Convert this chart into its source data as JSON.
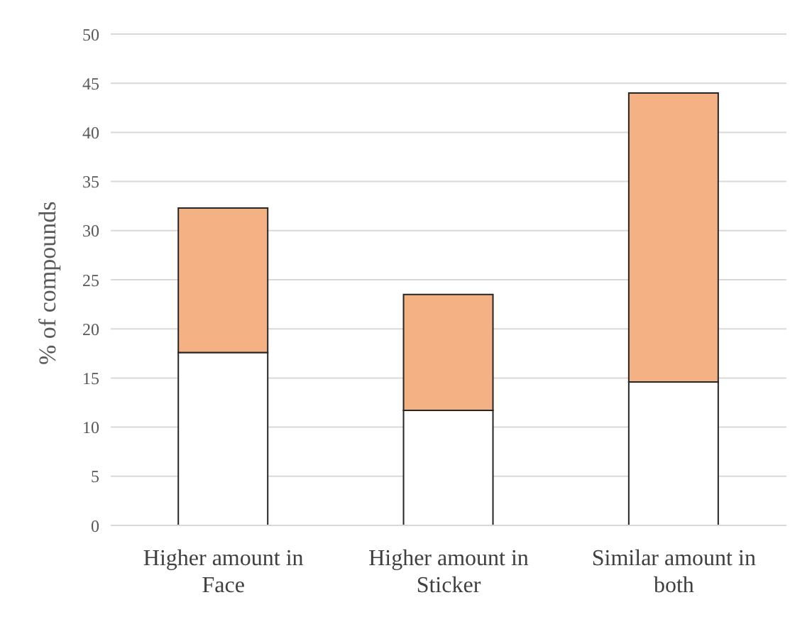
{
  "chart_data": {
    "type": "bar",
    "stacked": true,
    "ylabel": "% of compounds",
    "categories": [
      "Higher amount in Face",
      "Higher amount in Sticker",
      "Similar amount in both"
    ],
    "series": [
      {
        "color": "#ffffff",
        "values": [
          17.6,
          11.7,
          14.6
        ]
      },
      {
        "color": "#f4b183",
        "values": [
          14.7,
          11.8,
          29.4
        ]
      }
    ],
    "ylim": [
      0,
      50
    ],
    "yticks": [
      0,
      5,
      10,
      15,
      20,
      25,
      30,
      35,
      40,
      45,
      50
    ],
    "grid": "y",
    "legend": false
  }
}
